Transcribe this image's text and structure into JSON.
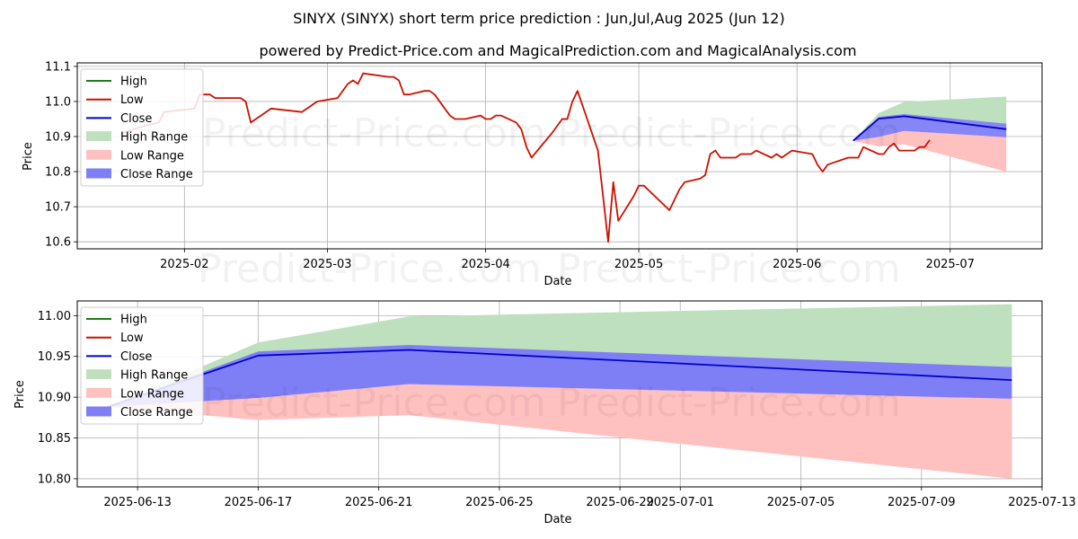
{
  "title_line1": "SINYX (SINYX) short term price prediction : Jun,Jul,Aug 2025 (Jun 12)",
  "title_line2": "powered by Predict-Price.com and MagicalPrediction.com and MagicalAnalysis.com",
  "watermark": "Predict-Price.com",
  "colors": {
    "high": "#1a7f1a",
    "low": "#cc1100",
    "close": "#0000cc",
    "high_range": "#bfe0bf",
    "low_range": "#ffc0c0",
    "close_range": "#7f7ff5",
    "grid": "#b0b0b0"
  },
  "legend": [
    "High",
    "Low",
    "Close",
    "High Range",
    "Low Range",
    "Close Range"
  ],
  "chart_data": [
    {
      "type": "line",
      "panel": "history",
      "xlabel": "Date",
      "ylabel": "Price",
      "xlim": [
        "2025-01-11",
        "2025-07-19"
      ],
      "ylim": [
        10.58,
        11.11
      ],
      "xticks": [
        "2025-02-01",
        "2025-03-01",
        "2025-04-01",
        "2025-05-01",
        "2025-06-01",
        "2025-07-01"
      ],
      "xtick_labels": [
        "2025-02",
        "2025-03",
        "2025-04",
        "2025-05",
        "2025-06",
        "2025-07"
      ],
      "yticks": [
        10.6,
        10.7,
        10.8,
        10.9,
        11.0,
        11.1
      ],
      "ytick_labels": [
        "10.6",
        "10.7",
        "10.8",
        "10.9",
        "11.0",
        "11.1"
      ],
      "low_series": {
        "name": "Low",
        "points": [
          [
            "2025-01-20",
            10.91
          ],
          [
            "2025-01-24",
            10.93
          ],
          [
            "2025-01-27",
            10.94
          ],
          [
            "2025-01-28",
            10.97
          ],
          [
            "2025-02-03",
            10.98
          ],
          [
            "2025-02-04",
            11.02
          ],
          [
            "2025-02-06",
            11.02
          ],
          [
            "2025-02-07",
            11.01
          ],
          [
            "2025-02-10",
            11.01
          ],
          [
            "2025-02-12",
            11.01
          ],
          [
            "2025-02-13",
            11.0
          ],
          [
            "2025-02-14",
            10.94
          ],
          [
            "2025-02-18",
            10.98
          ],
          [
            "2025-02-24",
            10.97
          ],
          [
            "2025-02-27",
            11.0
          ],
          [
            "2025-03-03",
            11.01
          ],
          [
            "2025-03-05",
            11.05
          ],
          [
            "2025-03-06",
            11.06
          ],
          [
            "2025-03-07",
            11.05
          ],
          [
            "2025-03-08",
            11.08
          ],
          [
            "2025-03-13",
            11.07
          ],
          [
            "2025-03-14",
            11.07
          ],
          [
            "2025-03-15",
            11.06
          ],
          [
            "2025-03-16",
            11.02
          ],
          [
            "2025-03-17",
            11.02
          ],
          [
            "2025-03-20",
            11.03
          ],
          [
            "2025-03-21",
            11.03
          ],
          [
            "2025-03-22",
            11.02
          ],
          [
            "2025-03-24",
            10.98
          ],
          [
            "2025-03-25",
            10.96
          ],
          [
            "2025-03-26",
            10.95
          ],
          [
            "2025-03-28",
            10.95
          ],
          [
            "2025-03-31",
            10.96
          ],
          [
            "2025-04-01",
            10.95
          ],
          [
            "2025-04-02",
            10.95
          ],
          [
            "2025-04-03",
            10.96
          ],
          [
            "2025-04-04",
            10.96
          ],
          [
            "2025-04-07",
            10.94
          ],
          [
            "2025-04-08",
            10.92
          ],
          [
            "2025-04-09",
            10.87
          ],
          [
            "2025-04-10",
            10.84
          ],
          [
            "2025-04-14",
            10.91
          ],
          [
            "2025-04-16",
            10.95
          ],
          [
            "2025-04-17",
            10.95
          ],
          [
            "2025-04-18",
            11.0
          ],
          [
            "2025-04-19",
            11.03
          ],
          [
            "2025-04-23",
            10.86
          ],
          [
            "2025-04-25",
            10.6
          ],
          [
            "2025-04-26",
            10.77
          ],
          [
            "2025-04-27",
            10.66
          ],
          [
            "2025-04-30",
            10.73
          ],
          [
            "2025-05-01",
            10.76
          ],
          [
            "2025-05-02",
            10.76
          ],
          [
            "2025-05-07",
            10.69
          ],
          [
            "2025-05-09",
            10.75
          ],
          [
            "2025-05-10",
            10.77
          ],
          [
            "2025-05-13",
            10.78
          ],
          [
            "2025-05-14",
            10.79
          ],
          [
            "2025-05-15",
            10.85
          ],
          [
            "2025-05-16",
            10.86
          ],
          [
            "2025-05-17",
            10.84
          ],
          [
            "2025-05-20",
            10.84
          ],
          [
            "2025-05-21",
            10.85
          ],
          [
            "2025-05-23",
            10.85
          ],
          [
            "2025-05-24",
            10.86
          ],
          [
            "2025-05-27",
            10.84
          ],
          [
            "2025-05-28",
            10.85
          ],
          [
            "2025-05-29",
            10.84
          ],
          [
            "2025-05-31",
            10.86
          ],
          [
            "2025-06-04",
            10.85
          ],
          [
            "2025-06-05",
            10.82
          ],
          [
            "2025-06-06",
            10.8
          ],
          [
            "2025-06-07",
            10.82
          ],
          [
            "2025-06-11",
            10.84
          ],
          [
            "2025-06-13",
            10.84
          ],
          [
            "2025-06-14",
            10.87
          ],
          [
            "2025-06-17",
            10.85
          ],
          [
            "2025-06-18",
            10.85
          ],
          [
            "2025-06-19",
            10.87
          ],
          [
            "2025-06-20",
            10.88
          ],
          [
            "2025-06-21",
            10.86
          ],
          [
            "2025-06-24",
            10.86
          ],
          [
            "2025-06-25",
            10.87
          ],
          [
            "2025-06-26",
            10.87
          ],
          [
            "2025-06-27",
            10.89
          ]
        ]
      }
    },
    {
      "type": "area",
      "panel": "forecast",
      "xlabel": "Date",
      "ylabel": "Price",
      "xlim": [
        "2025-06-11",
        "2025-07-13"
      ],
      "ylim": [
        10.79,
        11.018
      ],
      "xticks": [
        "2025-06-13",
        "2025-06-17",
        "2025-06-21",
        "2025-06-25",
        "2025-06-29",
        "2025-07-01",
        "2025-07-05",
        "2025-07-09",
        "2025-07-13"
      ],
      "xtick_labels": [
        "2025-06-13",
        "2025-06-17",
        "2025-06-21",
        "2025-06-25",
        "2025-06-29",
        "2025-07-01",
        "2025-07-05",
        "2025-07-09",
        "2025-07-13"
      ],
      "yticks": [
        10.8,
        10.85,
        10.9,
        10.95,
        11.0
      ],
      "ytick_labels": [
        "10.80",
        "10.85",
        "10.90",
        "10.95",
        "11.00"
      ],
      "x": [
        "2025-06-12",
        "2025-06-17",
        "2025-06-22",
        "2025-07-12"
      ],
      "close": [
        10.888,
        10.951,
        10.958,
        10.921
      ],
      "high_range": {
        "upper": [
          10.888,
          10.967,
          10.999,
          11.014
        ],
        "lower": [
          10.888,
          10.955,
          10.962,
          10.937
        ]
      },
      "close_range": {
        "upper": [
          10.888,
          10.956,
          10.964,
          10.937
        ],
        "lower": [
          10.888,
          10.899,
          10.916,
          10.898
        ]
      },
      "low_range": {
        "upper": [
          10.888,
          10.899,
          10.916,
          10.898
        ],
        "lower": [
          10.888,
          10.872,
          10.878,
          10.8
        ]
      }
    }
  ]
}
